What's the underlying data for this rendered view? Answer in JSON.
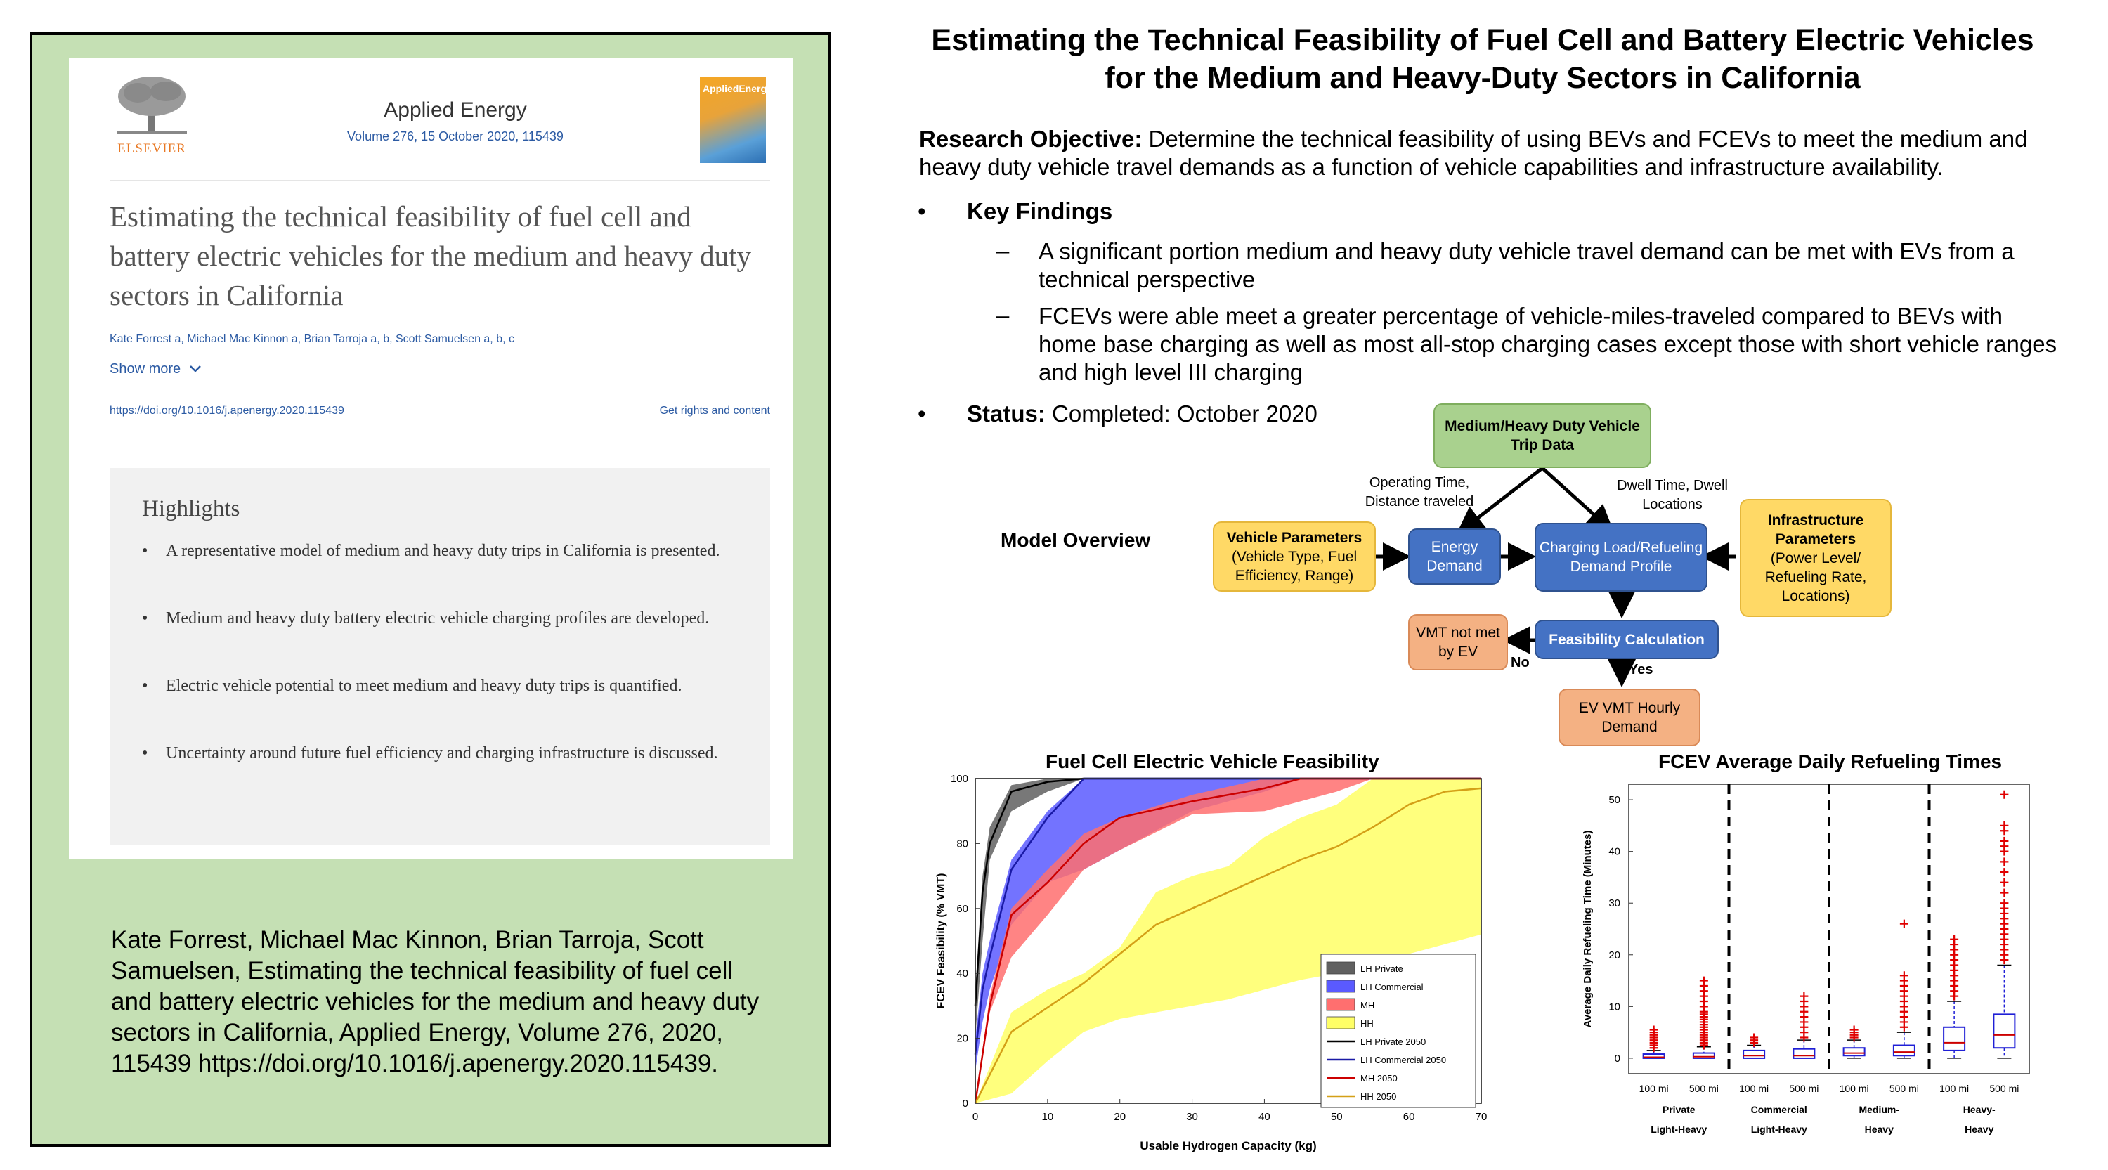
{
  "left_panel": {
    "publisher": "ELSEVIER",
    "journal_name": "Applied Energy",
    "journal_volume": "Volume 276, 15 October 2020, 115439",
    "cover_title": "AppliedEnergy",
    "paper_title": "Estimating the technical feasibility of fuel cell and battery electric vehicles for the medium and heavy duty sectors in California",
    "authors": "Kate Forrest a, Michael Mac Kinnon a, Brian Tarroja a, b, Scott Samuelsen a, b, c",
    "show_more": "Show more",
    "doi_link": "https://doi.org/10.1016/j.apenergy.2020.115439",
    "rights_link": "Get rights and content",
    "highlights_heading": "Highlights",
    "highlights": [
      "A representative model of medium and heavy duty trips in California is presented.",
      "Medium and heavy duty battery electric vehicle charging profiles are developed.",
      "Electric vehicle potential to meet medium and heavy duty trips is quantified.",
      "Uncertainty around future fuel efficiency and charging infrastructure is discussed."
    ],
    "bullet_glyph": "•",
    "citation": "Kate Forrest, Michael Mac Kinnon, Brian Tarroja, Scott Samuelsen, Estimating the technical feasibility of fuel cell and battery electric vehicles for the medium and heavy duty sectors in California, Applied Energy, Volume 276, 2020, 115439 https://doi.org/10.1016/j.apenergy.2020.115439."
  },
  "main": {
    "title": "Estimating the Technical Feasibility of Fuel Cell and Battery Electric Vehicles for the Medium and Heavy-Duty Sectors in California",
    "objective_label": "Research Objective:",
    "objective_text": " Determine the technical feasibility of using BEVs and FCEVs to meet the medium and heavy duty vehicle travel demands as a function of vehicle capabilities and infrastructure availability.",
    "bullet_glyph": "•",
    "dash_glyph": "–",
    "key_findings_label": "Key Findings",
    "findings": [
      "A significant portion medium and heavy duty vehicle travel demand can be met with EVs from a technical perspective",
      "FCEVs were able meet a greater percentage of vehicle-miles-traveled compared to BEVs with home base charging as well as most all-stop charging cases except those with short vehicle ranges and high level III charging"
    ],
    "status_label": "Status:",
    "status_text": " Completed:  October 2020"
  },
  "flowchart": {
    "model_overview": "Model Overview",
    "trip_data": "Medium/Heavy Duty Vehicle Trip Data",
    "vehicle_params_title": "Vehicle Parameters",
    "vehicle_params_detail": "(Vehicle Type, Fuel Efficiency, Range)",
    "energy_demand": "Energy Demand",
    "charging_profile": "Charging Load/Refueling Demand Profile",
    "infra_params_title": "Infrastructure Parameters",
    "infra_params_detail": "(Power Level/ Refueling Rate, Locations)",
    "feasibility_calc": "Feasibility Calculation",
    "vmt_not_met": "VMT not met by EV",
    "ev_vmt": "EV VMT Hourly Demand",
    "label_operating": "Operating Time, Distance traveled",
    "label_dwell": "Dwell Time, Dwell Locations",
    "label_no": "No",
    "label_yes": "Yes"
  },
  "chart_data": [
    {
      "type": "area",
      "title": "Fuel Cell Electric Vehicle Feasibility",
      "xlabel": "Usable Hydrogen Capacity (kg)",
      "ylabel": "FCEV Feasibility (% VMT)",
      "xlim": [
        0,
        70
      ],
      "ylim": [
        0,
        100
      ],
      "xticks": [
        0,
        10,
        20,
        30,
        40,
        50,
        60,
        70
      ],
      "yticks": [
        0,
        20,
        40,
        60,
        80,
        100
      ],
      "legend_position": "lower-right",
      "bands": [
        {
          "name": "LH Private",
          "color": "#606060",
          "x": [
            0,
            1,
            2,
            5,
            10,
            15,
            70
          ],
          "lower": [
            20,
            50,
            75,
            90,
            96,
            100,
            100
          ],
          "upper": [
            35,
            70,
            85,
            98,
            100,
            100,
            100
          ]
        },
        {
          "name": "LH Commercial",
          "color": "#5a5aff",
          "x": [
            0,
            1,
            2,
            5,
            10,
            15,
            30,
            40,
            45,
            70
          ],
          "lower": [
            10,
            25,
            35,
            55,
            68,
            72,
            90,
            96,
            100,
            100
          ],
          "upper": [
            20,
            40,
            50,
            75,
            90,
            100,
            100,
            100,
            100,
            100
          ]
        },
        {
          "name": "MH",
          "color": "#ff6f6f",
          "x": [
            0,
            2,
            5,
            10,
            15,
            20,
            30,
            40,
            50,
            55,
            70
          ],
          "lower": [
            0,
            28,
            45,
            58,
            72,
            78,
            89,
            90,
            96,
            100,
            100
          ],
          "upper": [
            0,
            33,
            60,
            72,
            83,
            88,
            95,
            100,
            100,
            100,
            100
          ]
        },
        {
          "name": "HH",
          "color": "#ffff66",
          "x": [
            0,
            5,
            10,
            15,
            20,
            25,
            30,
            35,
            40,
            45,
            50,
            55,
            60,
            65,
            70
          ],
          "lower": [
            0,
            3,
            13,
            22,
            26,
            28,
            30,
            32,
            35,
            38,
            40,
            43,
            46,
            49,
            52
          ],
          "upper": [
            0,
            28,
            35,
            40,
            48,
            65,
            70,
            73,
            82,
            88,
            92,
            100,
            100,
            100,
            100
          ]
        }
      ],
      "series": [
        {
          "name": "LH Private 2050",
          "color": "#000000",
          "x": [
            0,
            1,
            2,
            5,
            10,
            15,
            70
          ],
          "values": [
            30,
            65,
            80,
            96,
            99,
            100,
            100
          ]
        },
        {
          "name": "LH Commercial 2050",
          "color": "#1a1aa6",
          "x": [
            0,
            1,
            2,
            5,
            10,
            15,
            70
          ],
          "values": [
            15,
            35,
            45,
            72,
            88,
            100,
            100
          ]
        },
        {
          "name": "MH 2050",
          "color": "#cc0000",
          "x": [
            0,
            2,
            5,
            10,
            15,
            20,
            30,
            40,
            45,
            55,
            70
          ],
          "values": [
            0,
            30,
            58,
            68,
            80,
            88,
            93,
            97,
            100,
            100,
            100
          ]
        },
        {
          "name": "HH 2050",
          "color": "#d4a017",
          "x": [
            0,
            5,
            15,
            20,
            25,
            30,
            35,
            40,
            45,
            50,
            55,
            60,
            65,
            70
          ],
          "values": [
            0,
            22,
            37,
            46,
            55,
            60,
            65,
            70,
            75,
            79,
            85,
            92,
            96,
            97
          ]
        }
      ]
    },
    {
      "type": "box",
      "title": "FCEV Average Daily Refueling Times",
      "ylabel": "Average Daily Refueling Time (Minutes)",
      "ylim": [
        -3,
        53
      ],
      "yticks": [
        0,
        10,
        20,
        30,
        40,
        50
      ],
      "categories": [
        "100 mi",
        "500 mi",
        "100 mi",
        "500 mi",
        "100 mi",
        "500 mi",
        "100 mi",
        "500 mi"
      ],
      "groups": [
        {
          "label": "Private Light-Heavy",
          "lines": [
            "Private",
            "Light-Heavy"
          ]
        },
        {
          "label": "Commercial Light-Heavy",
          "lines": [
            "Commercial",
            "Light-Heavy"
          ]
        },
        {
          "label": "Medium-Heavy",
          "lines": [
            "Medium-",
            "Heavy"
          ]
        },
        {
          "label": "Heavy-Heavy",
          "lines": [
            "Heavy-",
            "Heavy"
          ]
        }
      ],
      "boxes": [
        {
          "q1": 0,
          "median": 0.2,
          "q3": 0.8,
          "wlo": 0,
          "whi": 1.5,
          "outliers": [
            2,
            2.5,
            3,
            3.5,
            4,
            4.5,
            5,
            5.5
          ]
        },
        {
          "q1": 0,
          "median": 0.3,
          "q3": 1.0,
          "wlo": 0,
          "whi": 2.2,
          "outliers": [
            2.5,
            3,
            3.5,
            4,
            4.5,
            5,
            5.5,
            6,
            6.5,
            7,
            7.5,
            8,
            8.5,
            9,
            10,
            11,
            12,
            13,
            14,
            15
          ]
        },
        {
          "q1": 0,
          "median": 0.5,
          "q3": 1.5,
          "wlo": 0,
          "whi": 2.5,
          "outliers": [
            3,
            3.5,
            4
          ]
        },
        {
          "q1": 0,
          "median": 0.5,
          "q3": 1.8,
          "wlo": 0,
          "whi": 3.5,
          "outliers": [
            4,
            5,
            6,
            7,
            8,
            9,
            10,
            11,
            12
          ]
        },
        {
          "q1": 0.5,
          "median": 1,
          "q3": 2,
          "wlo": 0,
          "whi": 3.5,
          "outliers": [
            4,
            4.5,
            5,
            5.5
          ]
        },
        {
          "q1": 0.5,
          "median": 1.2,
          "q3": 2.5,
          "wlo": 0,
          "whi": 5,
          "outliers": [
            6,
            7,
            8,
            9,
            10,
            11,
            12,
            13,
            14,
            15,
            16,
            26
          ]
        },
        {
          "q1": 1.5,
          "median": 3,
          "q3": 6,
          "wlo": 0,
          "whi": 11,
          "outliers": [
            12,
            13,
            14,
            15,
            16,
            17,
            18,
            19,
            20,
            21,
            22,
            23
          ]
        },
        {
          "q1": 2,
          "median": 4.5,
          "q3": 8.5,
          "wlo": 0,
          "whi": 18,
          "outliers": [
            19,
            20,
            21,
            22,
            23,
            24,
            25,
            26,
            27,
            28,
            29,
            30,
            32,
            34,
            36,
            38,
            40,
            41,
            42,
            44,
            45,
            51
          ]
        }
      ],
      "colors": {
        "box": "#1f1fd6",
        "median": "#cc0000",
        "outlier": "#e00000"
      }
    }
  ]
}
